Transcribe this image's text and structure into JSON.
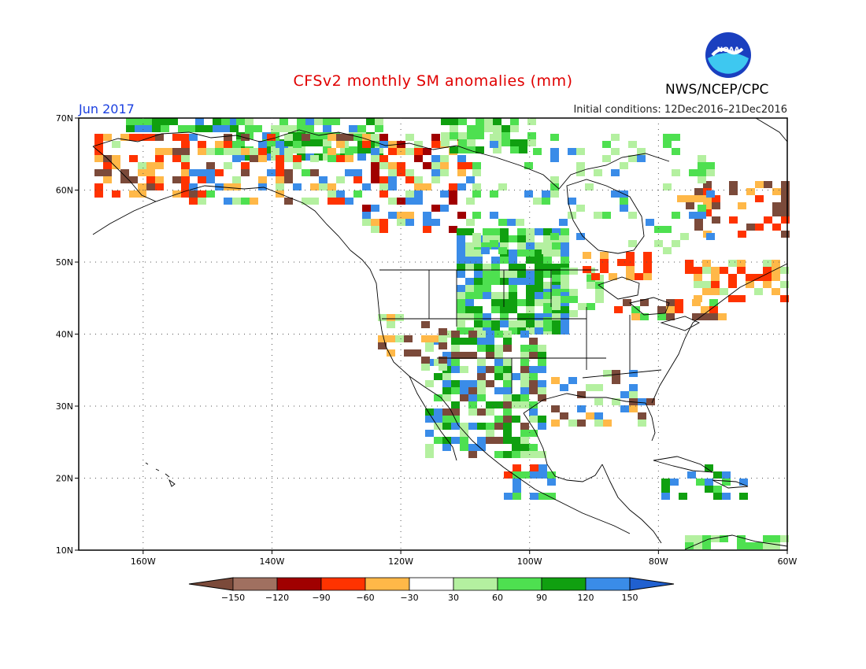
{
  "header": {
    "title": "CFSv2 monthly SM anomalies (mm)",
    "month": "Jun 2017",
    "initial_conditions": "Initial conditions: 12Dec2016–21Dec2016",
    "agency": "NWS/NCEP/CPC",
    "logo_text": "NOAA"
  },
  "map": {
    "lat_labels": [
      "70N",
      "60N",
      "50N",
      "40N",
      "30N",
      "20N",
      "10N"
    ],
    "lon_labels": [
      "160W",
      "140W",
      "120W",
      "100W",
      "80W",
      "60W"
    ],
    "lat_range": [
      10,
      70
    ],
    "lon_range": [
      -170,
      -60
    ],
    "grid": "dotted"
  },
  "legend": {
    "ticks": [
      "−150",
      "−120",
      "−90",
      "−60",
      "−30",
      "30",
      "60",
      "90",
      "120",
      "150"
    ],
    "colors": [
      "#7b4a3a",
      "#a07060",
      "#a00000",
      "#ff3300",
      "#ffb848",
      "#ffffff",
      "#b4f0a0",
      "#4ee050",
      "#10a010",
      "#3a8ce8",
      "#2060d0"
    ]
  },
  "colors": {
    "land_outline": "#000000",
    "wet_light": "#b4f0a0",
    "wet_mid": "#4ee050",
    "wet_dark": "#10a010",
    "very_wet": "#3a8ce8",
    "dry_light": "#ffb848",
    "dry_mid": "#ff3300",
    "dry_dark": "#a00000",
    "very_dry": "#7b4a3a"
  }
}
